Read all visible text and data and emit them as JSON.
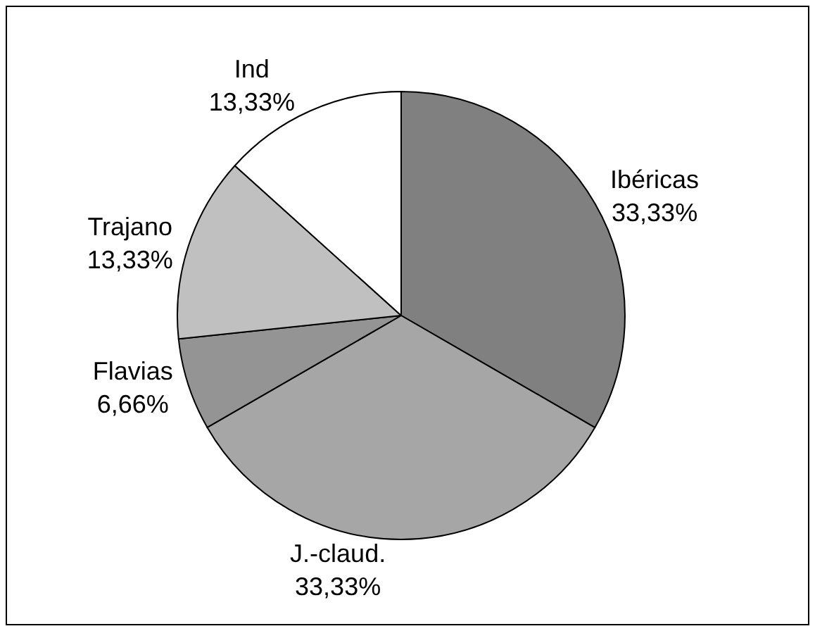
{
  "chart_data": {
    "type": "pie",
    "categories": [
      "Ibéricas",
      "J.-claud.",
      "Flavias",
      "Trajano",
      "Ind"
    ],
    "values": [
      33.33,
      33.33,
      6.66,
      13.33,
      13.33
    ],
    "value_labels": [
      "33,33%",
      "33,33%",
      "6,66%",
      "13,33%",
      "13,33%"
    ],
    "colors": [
      "#808080",
      "#a6a6a6",
      "#949494",
      "#c0c0c0",
      "#ffffff"
    ]
  }
}
